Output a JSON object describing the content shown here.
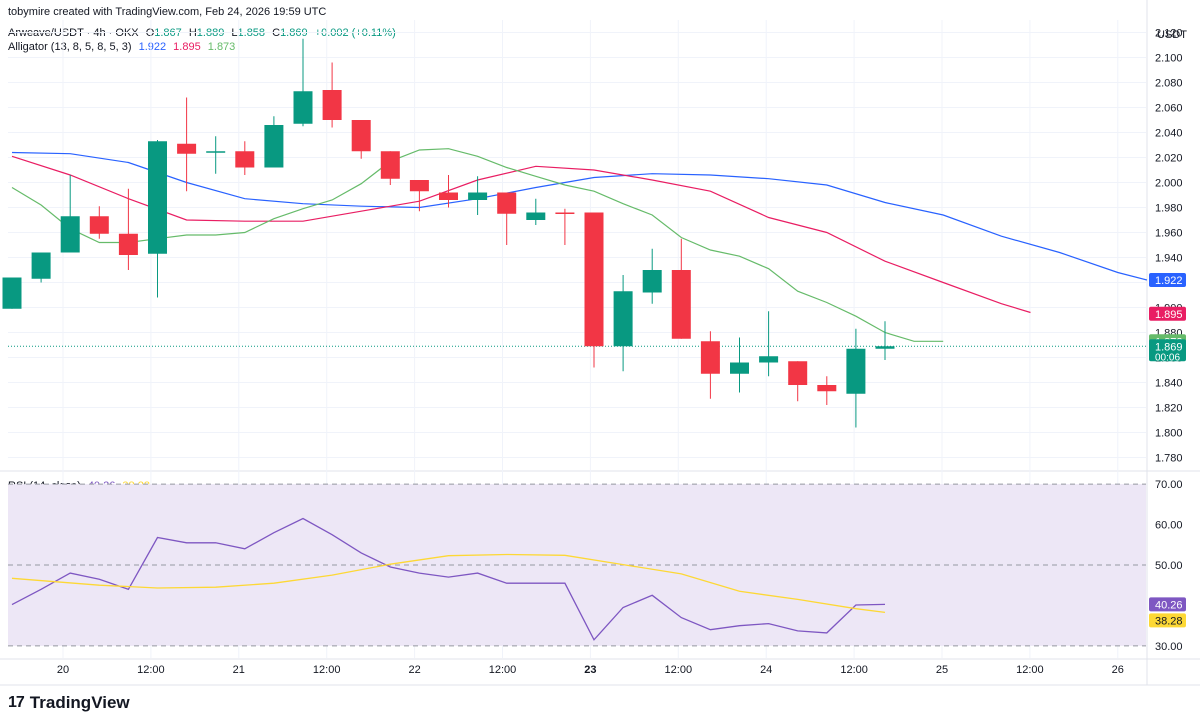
{
  "header": {
    "attribution": "tobymire created with TradingView.com, Feb 24, 2026 19:59 UTC",
    "currency": "USDT"
  },
  "symbol_line": {
    "name": "Arweave/USDT · 4h · OKX",
    "o_label": "O",
    "o_value": "1.867",
    "h_label": "H",
    "h_value": "1.889",
    "l_label": "L",
    "l_value": "1.858",
    "c_label": "C",
    "c_value": "1.869",
    "change": "+0.002 (+0.11%)"
  },
  "alligator_legend": {
    "name": "Alligator (13, 8, 5, 8, 5, 3)",
    "jaw": "1.922",
    "teeth": "1.895",
    "lips": "1.873"
  },
  "rsi_legend": {
    "name": "RSI (14, close)",
    "rsi": "40.26",
    "ma": "38.28"
  },
  "branding": {
    "logo_text": "TradingView",
    "logo_mark": "17"
  },
  "colors": {
    "up": "#089981",
    "down": "#f23645",
    "jaw": "#2962ff",
    "teeth": "#e91e63",
    "lips": "#66bb6a",
    "rsi": "#7e57c2",
    "rsi_ma": "#fdd835",
    "rsi_band": "#ede7f6",
    "grid": "#f0f3fa",
    "text": "#131722"
  },
  "chart_data": {
    "type": "candlestick",
    "timeframe": "4h",
    "x_ticks": [
      "20",
      "12:00",
      "21",
      "12:00",
      "22",
      "12:00",
      "23",
      "12:00",
      "24",
      "12:00",
      "25",
      "12:00",
      "26"
    ],
    "price_axis": {
      "ticks": [
        "2.120",
        "2.100",
        "2.080",
        "2.060",
        "2.040",
        "2.020",
        "2.000",
        "1.980",
        "1.960",
        "1.940",
        "1.920",
        "1.900",
        "1.880",
        "1.860",
        "1.840",
        "1.820",
        "1.800",
        "1.780"
      ],
      "ylim": [
        1.77,
        2.13
      ]
    },
    "candles": [
      {
        "o": 1.899,
        "h": 1.924,
        "l": 1.899,
        "c": 1.924
      },
      {
        "o": 1.923,
        "h": 1.942,
        "l": 1.92,
        "c": 1.944
      },
      {
        "o": 1.944,
        "h": 2.006,
        "l": 1.944,
        "c": 1.973
      },
      {
        "o": 1.973,
        "h": 1.981,
        "l": 1.955,
        "c": 1.959
      },
      {
        "o": 1.959,
        "h": 1.995,
        "l": 1.93,
        "c": 1.942
      },
      {
        "o": 1.943,
        "h": 2.034,
        "l": 1.908,
        "c": 2.033
      },
      {
        "o": 2.031,
        "h": 2.068,
        "l": 1.993,
        "c": 2.023
      },
      {
        "o": 2.025,
        "h": 2.037,
        "l": 2.007,
        "c": 2.025
      },
      {
        "o": 2.025,
        "h": 2.033,
        "l": 2.006,
        "c": 2.012
      },
      {
        "o": 2.012,
        "h": 2.053,
        "l": 2.012,
        "c": 2.046
      },
      {
        "o": 2.047,
        "h": 2.115,
        "l": 2.045,
        "c": 2.073
      },
      {
        "o": 2.074,
        "h": 2.096,
        "l": 2.044,
        "c": 2.05
      },
      {
        "o": 2.05,
        "h": 2.05,
        "l": 2.019,
        "c": 2.025
      },
      {
        "o": 2.025,
        "h": 2.025,
        "l": 1.998,
        "c": 2.003
      },
      {
        "o": 2.002,
        "h": 2.002,
        "l": 1.977,
        "c": 1.993
      },
      {
        "o": 1.992,
        "h": 2.006,
        "l": 1.98,
        "c": 1.986
      },
      {
        "o": 1.986,
        "h": 2.005,
        "l": 1.974,
        "c": 1.992
      },
      {
        "o": 1.992,
        "h": 1.992,
        "l": 1.95,
        "c": 1.975
      },
      {
        "o": 1.97,
        "h": 1.987,
        "l": 1.966,
        "c": 1.976
      },
      {
        "o": 1.976,
        "h": 1.979,
        "l": 1.95,
        "c": 1.975
      },
      {
        "o": 1.976,
        "h": 1.976,
        "l": 1.852,
        "c": 1.869
      },
      {
        "o": 1.869,
        "h": 1.926,
        "l": 1.849,
        "c": 1.913
      },
      {
        "o": 1.912,
        "h": 1.947,
        "l": 1.903,
        "c": 1.93
      },
      {
        "o": 1.93,
        "h": 1.955,
        "l": 1.875,
        "c": 1.875
      },
      {
        "o": 1.873,
        "h": 1.881,
        "l": 1.827,
        "c": 1.847
      },
      {
        "o": 1.847,
        "h": 1.876,
        "l": 1.832,
        "c": 1.856
      },
      {
        "o": 1.856,
        "h": 1.897,
        "l": 1.845,
        "c": 1.861
      },
      {
        "o": 1.857,
        "h": 1.857,
        "l": 1.825,
        "c": 1.838
      },
      {
        "o": 1.838,
        "h": 1.845,
        "l": 1.822,
        "c": 1.833
      },
      {
        "o": 1.831,
        "h": 1.883,
        "l": 1.804,
        "c": 1.867
      },
      {
        "o": 1.867,
        "h": 1.889,
        "l": 1.858,
        "c": 1.869
      }
    ],
    "alligator": {
      "jaw": [
        [
          0,
          2.024
        ],
        [
          2,
          2.023
        ],
        [
          4,
          2.016
        ],
        [
          6,
          2.0
        ],
        [
          8,
          1.987
        ],
        [
          10,
          1.983
        ],
        [
          12,
          1.981
        ],
        [
          14,
          1.98
        ],
        [
          16,
          1.987
        ],
        [
          18,
          1.996
        ],
        [
          20,
          2.004
        ],
        [
          22,
          2.007
        ],
        [
          24,
          2.006
        ],
        [
          26,
          2.003
        ],
        [
          28,
          1.998
        ],
        [
          30,
          1.984
        ],
        [
          32,
          1.974
        ],
        [
          34,
          1.957
        ],
        [
          36,
          1.944
        ],
        [
          38,
          1.928
        ],
        [
          39,
          1.922
        ]
      ],
      "teeth": [
        [
          0,
          2.021
        ],
        [
          2,
          2.006
        ],
        [
          4,
          1.987
        ],
        [
          6,
          1.97
        ],
        [
          8,
          1.969
        ],
        [
          10,
          1.969
        ],
        [
          12,
          1.977
        ],
        [
          14,
          1.985
        ],
        [
          16,
          2.002
        ],
        [
          18,
          2.013
        ],
        [
          20,
          2.01
        ],
        [
          22,
          2.002
        ],
        [
          24,
          1.993
        ],
        [
          26,
          1.972
        ],
        [
          28,
          1.96
        ],
        [
          30,
          1.937
        ],
        [
          32,
          1.92
        ],
        [
          34,
          1.903
        ],
        [
          35,
          1.896
        ]
      ],
      "lips": [
        [
          0,
          1.996
        ],
        [
          1,
          1.982
        ],
        [
          2,
          1.963
        ],
        [
          3,
          1.952
        ],
        [
          4,
          1.952
        ],
        [
          5,
          1.955
        ],
        [
          6,
          1.958
        ],
        [
          7,
          1.958
        ],
        [
          8,
          1.96
        ],
        [
          9,
          1.971
        ],
        [
          10,
          1.979
        ],
        [
          11,
          1.986
        ],
        [
          12,
          1.999
        ],
        [
          13,
          2.017
        ],
        [
          14,
          2.026
        ],
        [
          15,
          2.027
        ],
        [
          16,
          2.021
        ],
        [
          17,
          2.012
        ],
        [
          18,
          2.005
        ],
        [
          19,
          1.998
        ],
        [
          20,
          1.993
        ],
        [
          21,
          1.983
        ],
        [
          22,
          1.974
        ],
        [
          23,
          1.956
        ],
        [
          24,
          1.946
        ],
        [
          25,
          1.941
        ],
        [
          26,
          1.931
        ],
        [
          27,
          1.913
        ],
        [
          28,
          1.904
        ],
        [
          29,
          1.893
        ],
        [
          30,
          1.88
        ],
        [
          31,
          1.873
        ],
        [
          32,
          1.873
        ]
      ]
    },
    "last_price": 1.869,
    "price_labels": [
      "1.922",
      "1.895",
      "1.873",
      "1.869",
      "00:06"
    ],
    "rsi": {
      "ticks": [
        "70.00",
        "60.00",
        "50.00",
        "30.00"
      ],
      "ylim": [
        27,
        73
      ],
      "band": [
        30,
        70
      ],
      "midline": 50,
      "values": [
        40.2,
        44,
        48,
        46.5,
        44,
        56.8,
        55.5,
        55.5,
        54,
        58,
        61.5,
        57.5,
        53,
        49.5,
        48,
        47,
        48,
        45.5,
        45.5,
        45.5,
        31.5,
        39.5,
        42.5,
        37,
        34,
        35,
        35.5,
        33.7,
        33.2,
        40.1,
        40.26
      ],
      "ma": [
        [
          0,
          46.7
        ],
        [
          3,
          45
        ],
        [
          5,
          44.3
        ],
        [
          7,
          44.5
        ],
        [
          9,
          45.5
        ],
        [
          11,
          47.5
        ],
        [
          13,
          50.2
        ],
        [
          15,
          52.3
        ],
        [
          17,
          52.6
        ],
        [
          19,
          52.4
        ],
        [
          21,
          50.1
        ],
        [
          23,
          47.8
        ],
        [
          25,
          43.5
        ],
        [
          27,
          41.5
        ],
        [
          29,
          39.2
        ],
        [
          30,
          38.28
        ]
      ],
      "labels": [
        "40.26",
        "38.28"
      ]
    }
  }
}
